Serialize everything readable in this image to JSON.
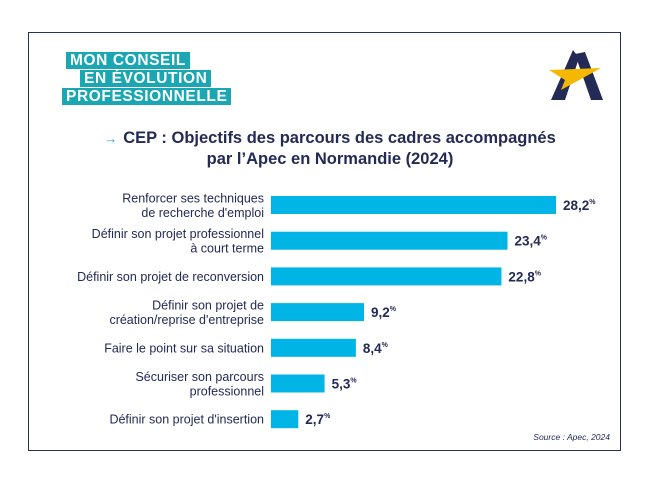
{
  "logo": {
    "line1": "MON CONSEIL",
    "line2": "EN ÉVOLUTION",
    "line3": "PROFESSIONNELLE"
  },
  "brand": {
    "icon": "apec-logo-icon",
    "colors": {
      "navy": "#232a55",
      "yellow": "#f5b800"
    }
  },
  "title": {
    "arrow": "→",
    "line1": "CEP : Objectifs des parcours des cadres accompagnés",
    "line2": "par l’Apec en Normandie (2024)"
  },
  "source": "Source : Apec, 2024",
  "chart_data": {
    "type": "bar",
    "orientation": "horizontal",
    "bar_color": "#00b4e6",
    "value_suffix": "%",
    "categories": [
      [
        "Renforcer ses techniques",
        "de recherche d'emploi"
      ],
      [
        "Définir son projet professionnel",
        "à court terme"
      ],
      [
        "Définir son projet de reconversion"
      ],
      [
        "Définir son projet de",
        "création/reprise d'entreprise"
      ],
      [
        "Faire le point sur sa situation"
      ],
      [
        "Sécuriser son parcours",
        "professionnel"
      ],
      [
        "Définir son projet d'insertion"
      ]
    ],
    "values": [
      28.2,
      23.4,
      22.8,
      9.2,
      8.4,
      5.3,
      2.7
    ],
    "value_labels": [
      "28,2",
      "23,4",
      "22,8",
      "9,2",
      "8,4",
      "5,3",
      "2,7"
    ],
    "xlim": [
      0,
      28.2
    ]
  }
}
